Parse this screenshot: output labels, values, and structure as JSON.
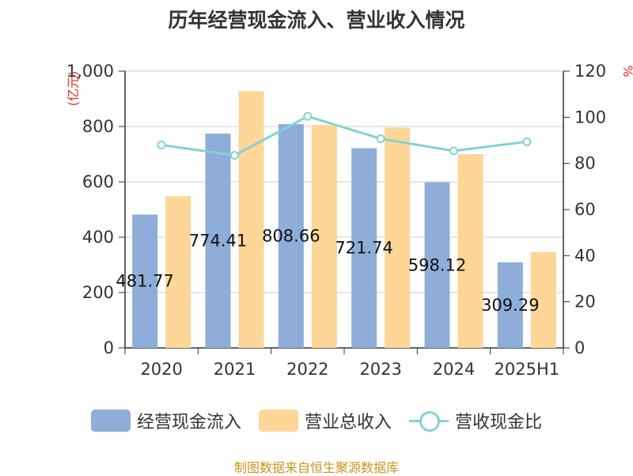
{
  "title": "历年经营现金流入、营业收入情况",
  "source": "制图数据来自恒生聚源数据库",
  "colors": {
    "inflow": "#8eadd9",
    "revenue": "#fdd698",
    "ratio": "#86d2d3"
  },
  "chart_data": {
    "type": "bar",
    "title": "历年经营现金流入、营业收入情况",
    "categories": [
      "2020",
      "2021",
      "2022",
      "2023",
      "2024",
      "2025H1"
    ],
    "y_left": {
      "label": "(亿元)",
      "ticks": [
        "0",
        "200",
        "400",
        "600",
        "800",
        "1,000"
      ],
      "range": [
        0,
        1000
      ]
    },
    "y_right": {
      "label": "%",
      "ticks": [
        "0",
        "20",
        "40",
        "60",
        "80",
        "100",
        "120"
      ],
      "range": [
        0,
        120
      ]
    },
    "series": [
      {
        "name": "经营现金流入",
        "type": "bar",
        "axis": "left",
        "values": [
          481.77,
          774.41,
          808.66,
          721.74,
          598.12,
          309.29
        ],
        "labels": [
          "481.77",
          "774.41",
          "808.66",
          "721.74",
          "598.12",
          "309.29"
        ]
      },
      {
        "name": "营业总收入",
        "type": "bar",
        "axis": "left",
        "values": [
          548,
          928,
          806,
          796,
          700,
          346
        ]
      },
      {
        "name": "营收现金比",
        "type": "line",
        "axis": "right",
        "values": [
          88,
          83.5,
          100.4,
          90.7,
          85.4,
          89.4
        ]
      }
    ],
    "legend": "bottom",
    "grid": true
  }
}
